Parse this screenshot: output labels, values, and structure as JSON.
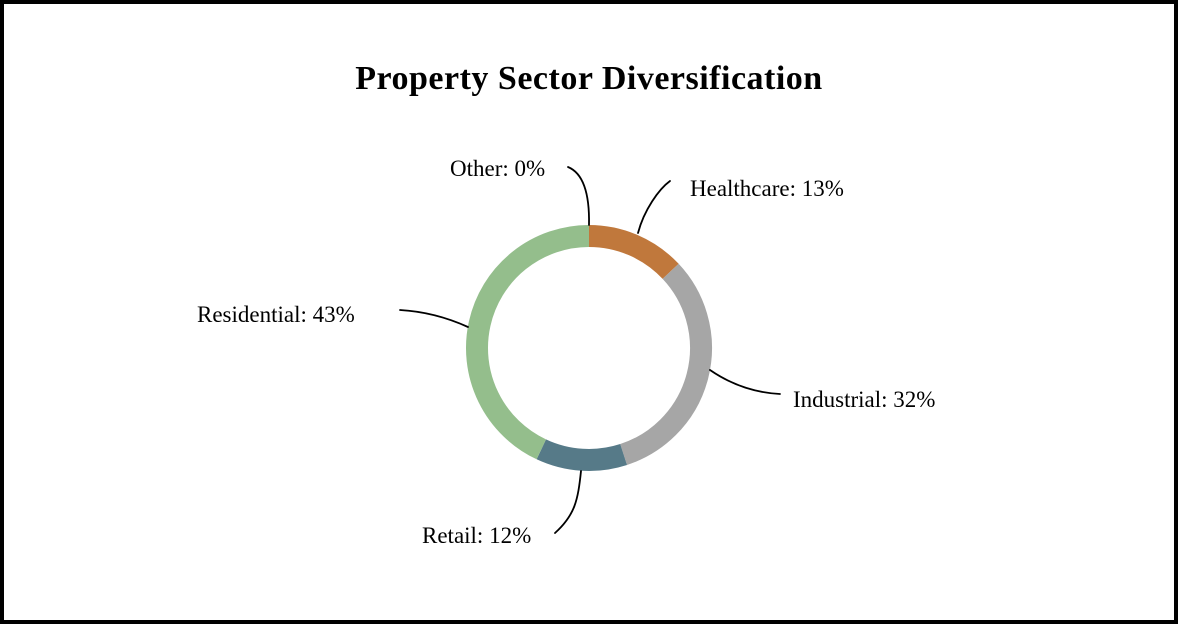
{
  "title": "Property Sector Diversification",
  "chart_data": {
    "type": "pie",
    "subtype": "donut",
    "title": "Property Sector Diversification",
    "start_angle_deg": 0,
    "direction": "clockwise",
    "legend_position": "none",
    "label_style": "outside-with-leader-lines",
    "background_color": "#ffffff",
    "border_color": "#000000",
    "leader_line_color": "#000000",
    "segments": [
      {
        "label": "Healthcare",
        "value": 13,
        "display": "Healthcare: 13%",
        "color": "#C0783C"
      },
      {
        "label": "Industrial",
        "value": 32,
        "display": "Industrial: 32%",
        "color": "#A6A6A6"
      },
      {
        "label": "Retail",
        "value": 12,
        "display": "Retail: 12%",
        "color": "#567A88"
      },
      {
        "label": "Residential",
        "value": 43,
        "display": "Residential: 43%",
        "color": "#94BE8C"
      },
      {
        "label": "Other",
        "value": 0,
        "display": "Other: 0%"
      }
    ]
  }
}
